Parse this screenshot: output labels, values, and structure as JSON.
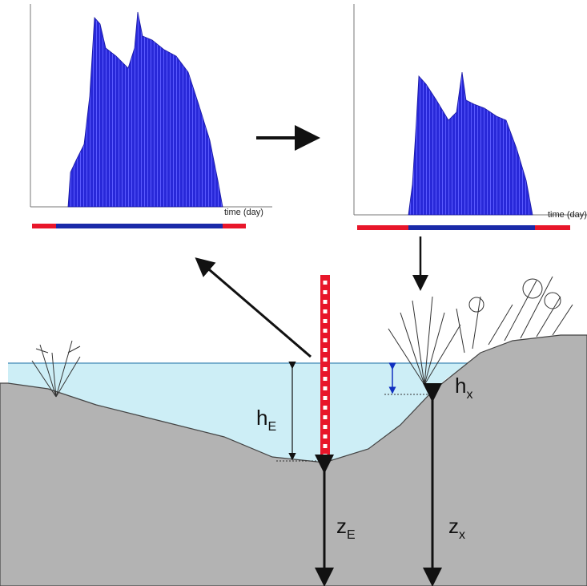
{
  "charts": [
    {
      "x_axis_label": "time (day)"
    },
    {
      "x_axis_label": "time (day)"
    }
  ],
  "labels": {
    "water_depth_e": {
      "symbol": "h",
      "subscript": "E"
    },
    "water_depth_x": {
      "symbol": "h",
      "subscript": "x"
    },
    "elevation_e": {
      "symbol": "z",
      "subscript": "E"
    },
    "elevation_x": {
      "symbol": "z",
      "subscript": "x"
    }
  }
}
